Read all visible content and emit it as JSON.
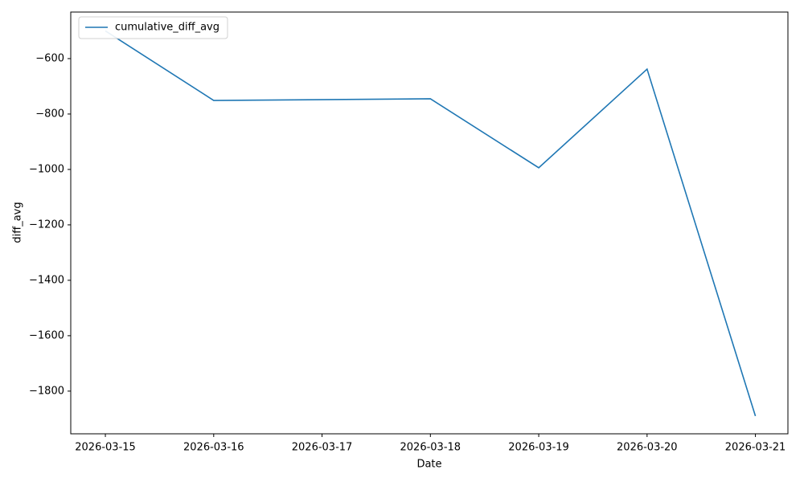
{
  "chart_data": {
    "type": "line",
    "x": [
      "2026-03-15",
      "2026-03-16",
      "2026-03-18",
      "2026-03-19",
      "2026-03-20",
      "2026-03-21"
    ],
    "series": [
      {
        "name": "cumulative_diff_avg",
        "color": "#1f77b4",
        "values": [
          -500,
          -751,
          -745,
          -994,
          -638,
          -1890
        ]
      }
    ],
    "xlabel": "Date",
    "ylabel": "diff_avg",
    "xlim": [
      "2026-03-14T16:20",
      "2026-03-21T07:12"
    ],
    "xticks": [
      "2026-03-15",
      "2026-03-16",
      "2026-03-17",
      "2026-03-18",
      "2026-03-19",
      "2026-03-20",
      "2026-03-21"
    ],
    "ylim": [
      -1954,
      -432
    ],
    "yticks": [
      {
        "value": -600,
        "label": "−600"
      },
      {
        "value": -800,
        "label": "−800"
      },
      {
        "value": -1000,
        "label": "−1000"
      },
      {
        "value": -1200,
        "label": "−1200"
      },
      {
        "value": -1400,
        "label": "−1400"
      },
      {
        "value": -1600,
        "label": "−1600"
      },
      {
        "value": -1800,
        "label": "−1800"
      }
    ],
    "grid": false,
    "legend": "upper left"
  }
}
